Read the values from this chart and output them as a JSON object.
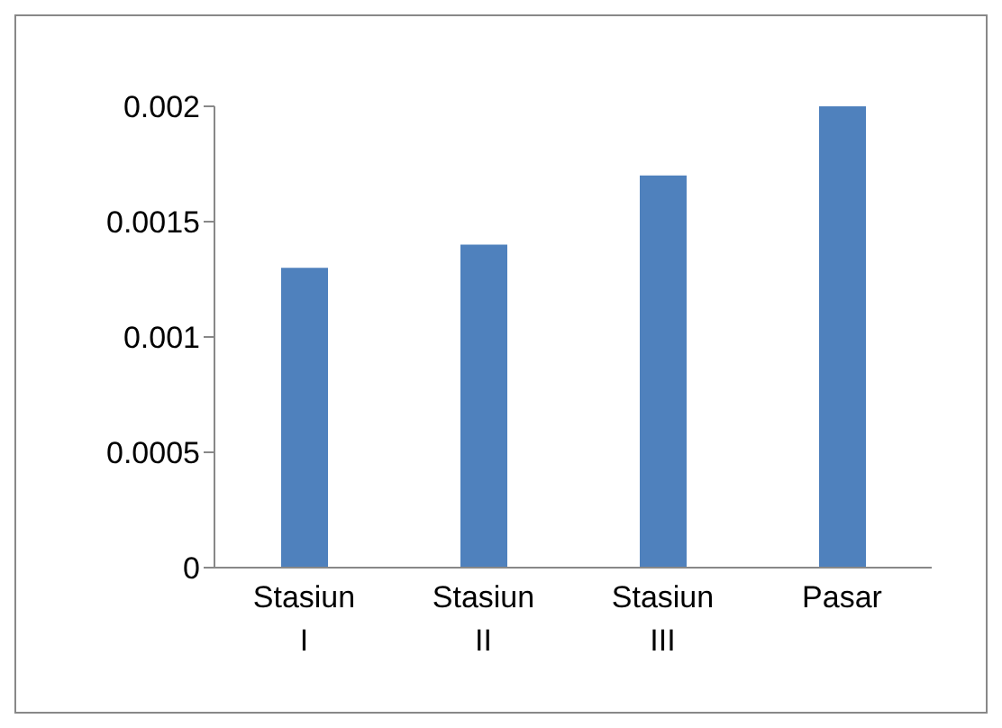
{
  "chart_data": {
    "type": "bar",
    "categories": [
      "Stasiun I",
      "Stasiun II",
      "Stasiun III",
      "Pasar"
    ],
    "values": [
      0.0013,
      0.0014,
      0.0017,
      0.002
    ],
    "color": "#4f81bd",
    "ylim": [
      0,
      0.002
    ],
    "yticks": [
      0,
      0.0005,
      0.001,
      0.0015,
      0.002
    ],
    "grid": false,
    "legend": false
  }
}
